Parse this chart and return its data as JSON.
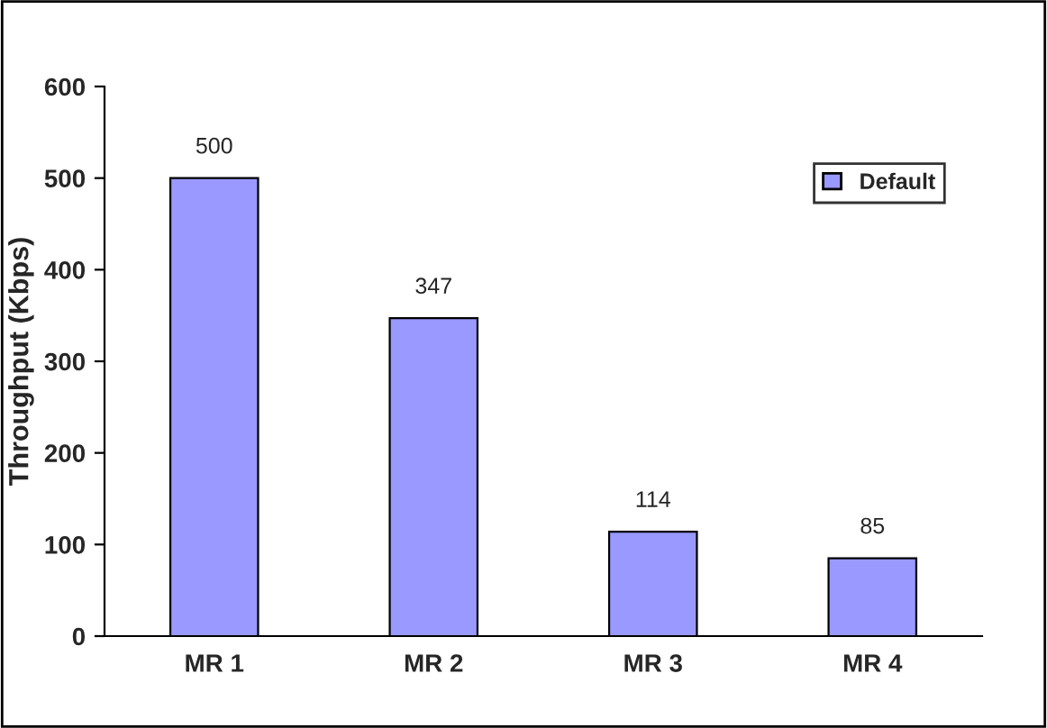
{
  "chart_data": {
    "type": "bar",
    "ylabel": "Throughput (Kbps)",
    "categories": [
      "MR 1",
      "MR 2",
      "MR 3",
      "MR 4"
    ],
    "series": [
      {
        "name": "Default",
        "color": "#9999ff",
        "values": [
          500,
          347,
          114,
          85
        ]
      }
    ],
    "ylim": [
      0,
      600
    ],
    "yticks": [
      0,
      100,
      200,
      300,
      400,
      500,
      600
    ],
    "data_labels": true,
    "legend": "top right",
    "grid": false
  }
}
